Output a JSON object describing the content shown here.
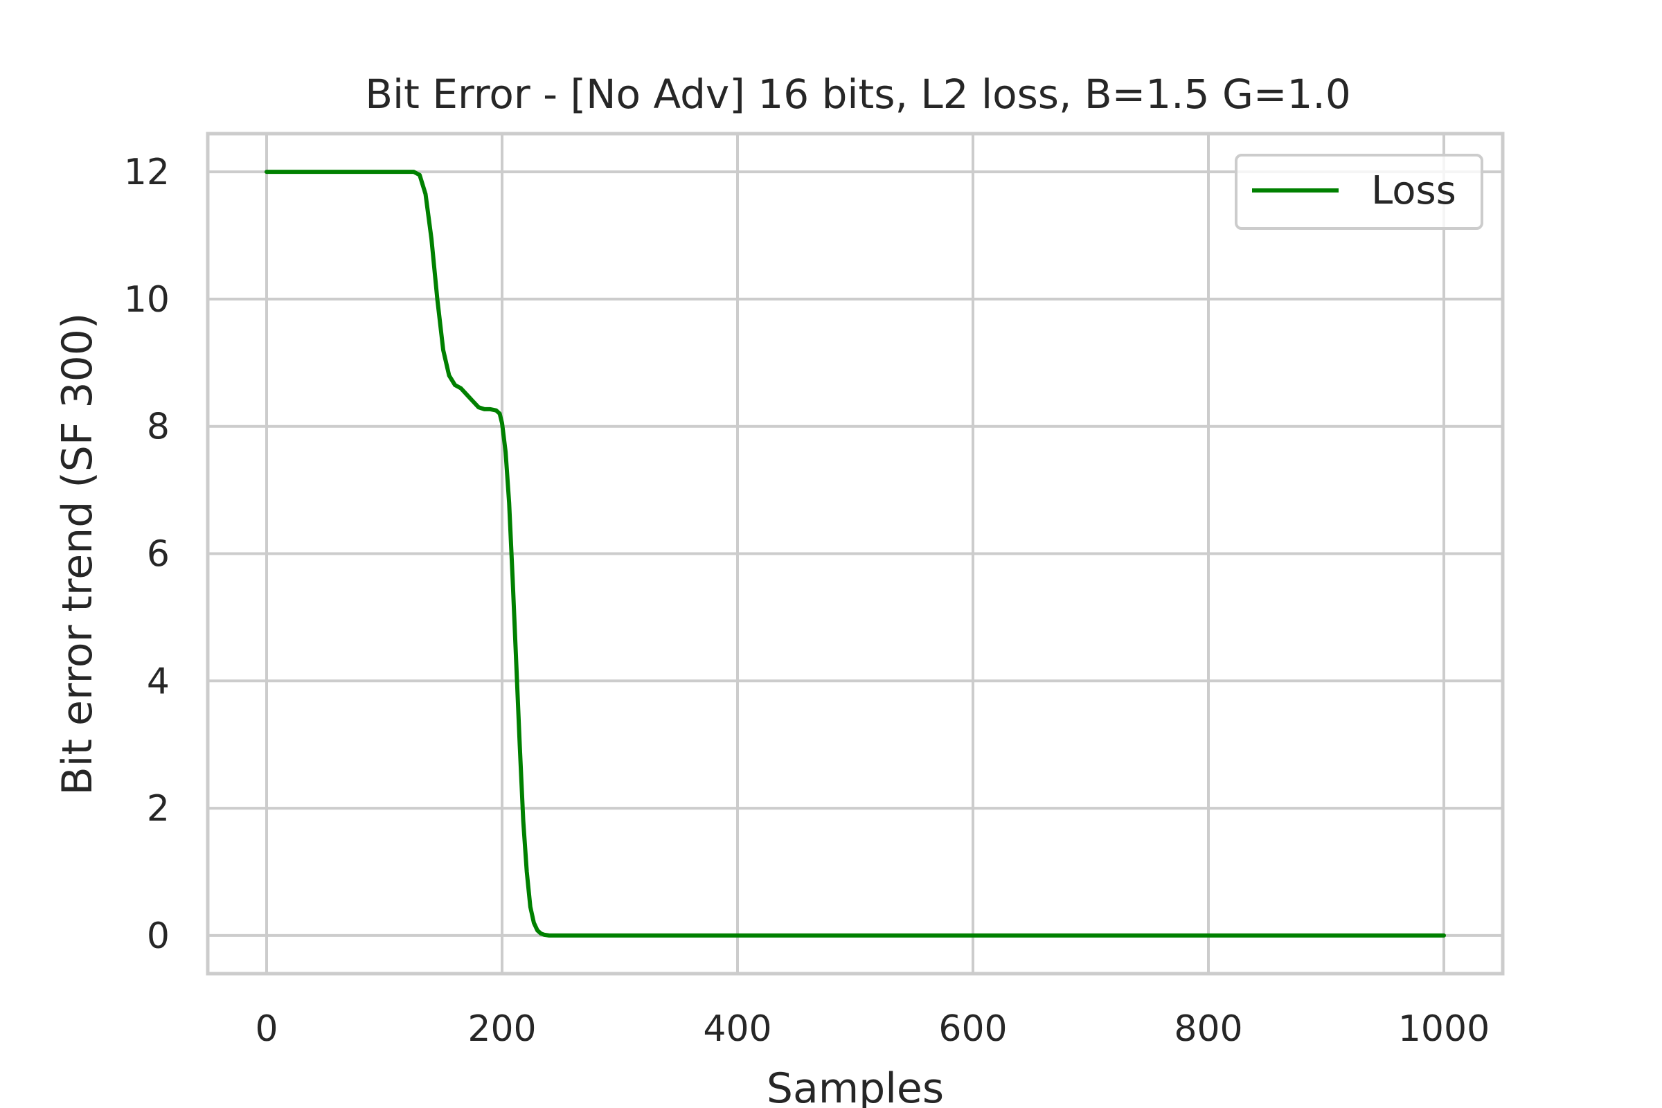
{
  "chart_data": {
    "type": "line",
    "title": "Bit Error - [No Adv] 16 bits, L2 loss, B=1.5 G=1.0",
    "xlabel": "Samples",
    "ylabel": "Bit error trend (SF 300)",
    "xlim": [
      -50,
      1050
    ],
    "ylim": [
      -0.6,
      12.6
    ],
    "xticks": [
      0,
      200,
      400,
      600,
      800,
      1000
    ],
    "xtick_labels": [
      "0",
      "200",
      "400",
      "600",
      "800",
      "1000"
    ],
    "yticks": [
      0,
      2,
      4,
      6,
      8,
      10,
      12
    ],
    "ytick_labels": [
      "0",
      "2",
      "4",
      "6",
      "8",
      "10",
      "12"
    ],
    "grid": true,
    "legend_placement": "upper right",
    "series": [
      {
        "name": "Loss",
        "color": "#008000",
        "x": [
          0,
          50,
          100,
          120,
          125,
          130,
          135,
          140,
          145,
          150,
          155,
          160,
          165,
          170,
          175,
          180,
          185,
          190,
          195,
          198,
          200,
          203,
          206,
          209,
          212,
          215,
          218,
          221,
          224,
          227,
          230,
          233,
          236,
          240,
          245,
          250,
          300,
          400,
          500,
          600,
          700,
          800,
          900,
          1000
        ],
        "y": [
          12,
          12,
          12,
          12,
          12,
          11.95,
          11.65,
          10.95,
          10.0,
          9.2,
          8.8,
          8.65,
          8.6,
          8.5,
          8.4,
          8.3,
          8.27,
          8.27,
          8.25,
          8.2,
          8.05,
          7.6,
          6.8,
          5.6,
          4.3,
          3.0,
          1.8,
          1.0,
          0.45,
          0.2,
          0.08,
          0.03,
          0.01,
          0.0,
          0.0,
          0.0,
          0.0,
          0.0,
          0.0,
          0.0,
          0.0,
          0.0,
          0.0,
          0.0
        ]
      }
    ]
  }
}
